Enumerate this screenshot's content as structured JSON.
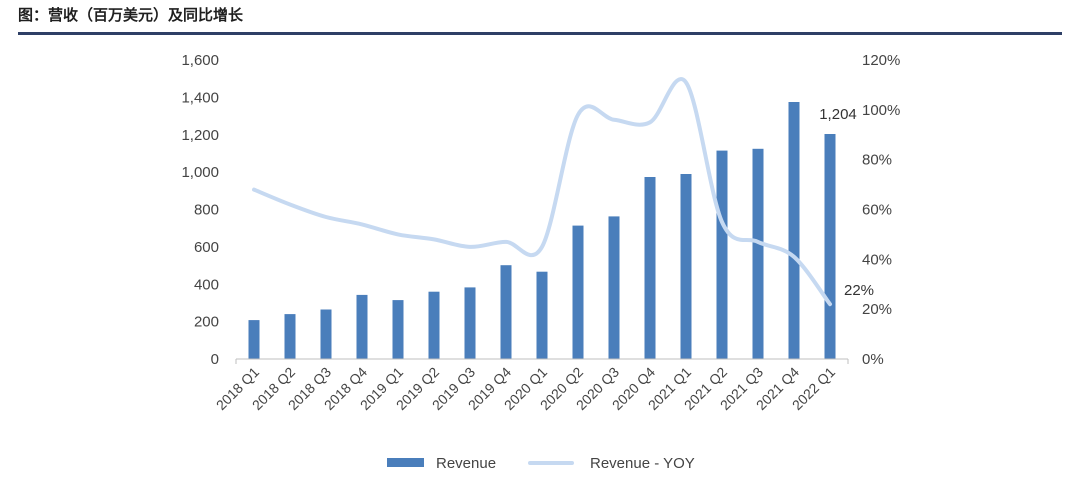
{
  "header": {
    "title": "图：营收（百万美元）及同比增长"
  },
  "colors": {
    "bar": "#4a7ebb",
    "line": "#c6d9f1",
    "rule": "#2e3f66",
    "axis": "#bfbfbf"
  },
  "chart_data": {
    "type": "bar",
    "categories": [
      "2018 Q1",
      "2018 Q2",
      "2018 Q3",
      "2018 Q4",
      "2019 Q1",
      "2019 Q2",
      "2019 Q3",
      "2019 Q4",
      "2020 Q1",
      "2020 Q2",
      "2020 Q3",
      "2020 Q4",
      "2021 Q1",
      "2021 Q2",
      "2021 Q3",
      "2021 Q4",
      "2022 Q1"
    ],
    "series": [
      {
        "name": "Revenue",
        "type": "bar",
        "axis": "left",
        "values": [
          208,
          240,
          265,
          343,
          315,
          360,
          383,
          502,
          467,
          714,
          763,
          974,
          990,
          1115,
          1125,
          1375,
          1204
        ]
      },
      {
        "name": "Revenue - YOY",
        "type": "line",
        "axis": "right",
        "smooth": true,
        "values": [
          68,
          62,
          57,
          54,
          50,
          48,
          45,
          47,
          45,
          98,
          96,
          95,
          111,
          55,
          47,
          41,
          22
        ]
      }
    ],
    "y_left": {
      "ylim": [
        0,
        1600
      ],
      "ticks": [
        0,
        200,
        400,
        600,
        800,
        1000,
        1200,
        1400,
        1600
      ],
      "tick_labels": [
        "0",
        "200",
        "400",
        "600",
        "800",
        "1,000",
        "1,200",
        "1,400",
        "1,600"
      ]
    },
    "y_right": {
      "ylim": [
        0,
        120
      ],
      "ticks": [
        0,
        20,
        40,
        60,
        80,
        100,
        120
      ],
      "tick_labels": [
        "0%",
        "20%",
        "40%",
        "60%",
        "80%",
        "100%",
        "120%"
      ]
    },
    "annotations": [
      {
        "series": "Revenue",
        "index": 16,
        "text": "1,204"
      },
      {
        "series": "Revenue - YOY",
        "index": 16,
        "text": "22%"
      }
    ],
    "legend": {
      "position": "bottom",
      "items": [
        "Revenue",
        "Revenue - YOY"
      ]
    },
    "grid": false
  }
}
